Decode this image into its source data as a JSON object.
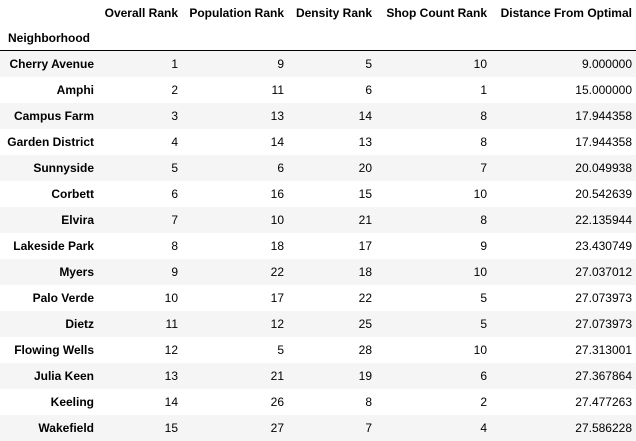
{
  "table": {
    "index_name": "Neighborhood",
    "columns": [
      "Overall Rank",
      "Population Rank",
      "Density Rank",
      "Shop Count Rank",
      "Distance From Optimal"
    ],
    "rows": [
      {
        "name": "Cherry Avenue",
        "values": [
          "1",
          "9",
          "5",
          "10",
          "9.000000"
        ]
      },
      {
        "name": "Amphi",
        "values": [
          "2",
          "11",
          "6",
          "1",
          "15.000000"
        ]
      },
      {
        "name": "Campus Farm",
        "values": [
          "3",
          "13",
          "14",
          "8",
          "17.944358"
        ]
      },
      {
        "name": "Garden District",
        "values": [
          "4",
          "14",
          "13",
          "8",
          "17.944358"
        ]
      },
      {
        "name": "Sunnyside",
        "values": [
          "5",
          "6",
          "20",
          "7",
          "20.049938"
        ]
      },
      {
        "name": "Corbett",
        "values": [
          "6",
          "16",
          "15",
          "10",
          "20.542639"
        ]
      },
      {
        "name": "Elvira",
        "values": [
          "7",
          "10",
          "21",
          "8",
          "22.135944"
        ]
      },
      {
        "name": "Lakeside Park",
        "values": [
          "8",
          "18",
          "17",
          "9",
          "23.430749"
        ]
      },
      {
        "name": "Myers",
        "values": [
          "9",
          "22",
          "18",
          "10",
          "27.037012"
        ]
      },
      {
        "name": "Palo Verde",
        "values": [
          "10",
          "17",
          "22",
          "5",
          "27.073973"
        ]
      },
      {
        "name": "Dietz",
        "values": [
          "11",
          "12",
          "25",
          "5",
          "27.073973"
        ]
      },
      {
        "name": "Flowing Wells",
        "values": [
          "12",
          "5",
          "28",
          "10",
          "27.313001"
        ]
      },
      {
        "name": "Julia Keen",
        "values": [
          "13",
          "21",
          "19",
          "6",
          "27.367864"
        ]
      },
      {
        "name": "Keeling",
        "values": [
          "14",
          "26",
          "8",
          "2",
          "27.477263"
        ]
      },
      {
        "name": "Wakefield",
        "values": [
          "15",
          "27",
          "7",
          "4",
          "27.586228"
        ]
      }
    ]
  }
}
